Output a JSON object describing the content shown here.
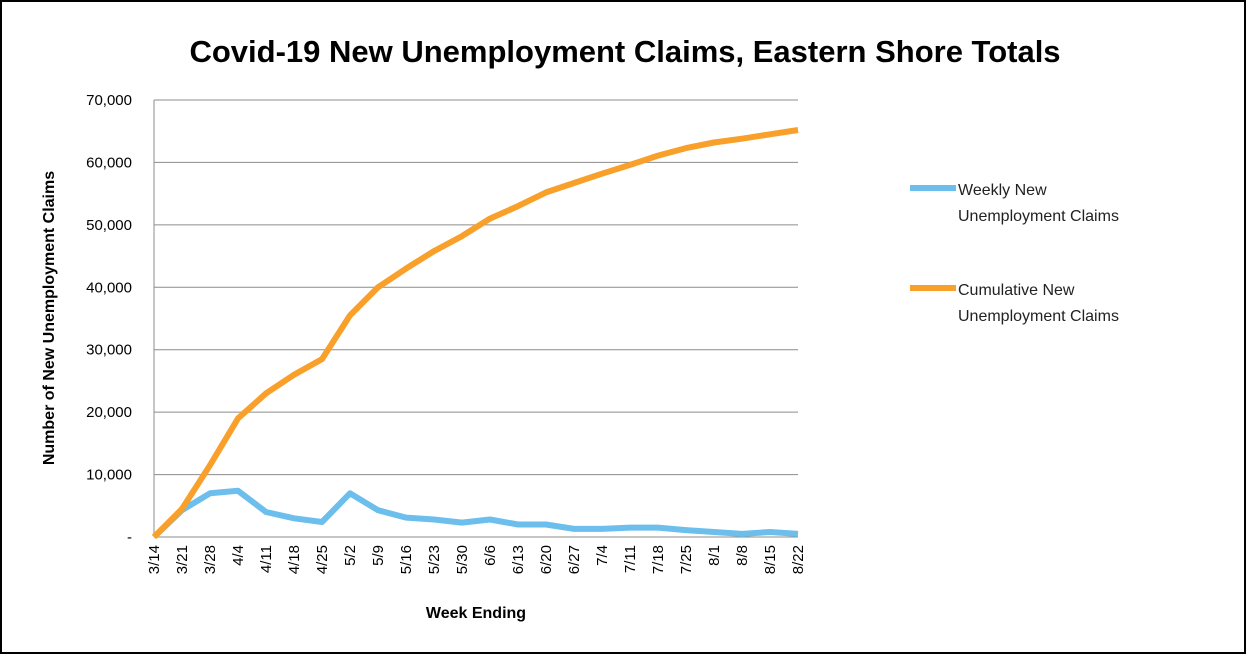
{
  "chart_data": {
    "type": "line",
    "title": "Covid-19 New Unemployment Claims, Eastern Shore Totals",
    "xlabel": "Week Ending",
    "ylabel": "Number of New Unemployment Claims",
    "ylim": [
      0,
      70000
    ],
    "yticks": [
      0,
      10000,
      20000,
      30000,
      40000,
      50000,
      60000,
      70000
    ],
    "ytick_labels": [
      "-",
      "10,000",
      "20,000",
      "30,000",
      "40,000",
      "50,000",
      "60,000",
      "70,000"
    ],
    "grid": true,
    "legend_position": "right",
    "categories": [
      "3/14",
      "3/21",
      "3/28",
      "4/4",
      "4/11",
      "4/18",
      "4/25",
      "5/2",
      "5/9",
      "5/16",
      "5/23",
      "5/30",
      "6/6",
      "6/13",
      "6/20",
      "6/27",
      "7/4",
      "7/11",
      "7/18",
      "7/25",
      "8/1",
      "8/8",
      "8/15",
      "8/22"
    ],
    "series": [
      {
        "name": "Weekly New Unemployment Claims",
        "color": "#6cbfec",
        "values": [
          0,
          4300,
          7000,
          7400,
          4000,
          3000,
          2400,
          7000,
          4300,
          3100,
          2800,
          2300,
          2800,
          2000,
          2000,
          1300,
          1300,
          1500,
          1500,
          1100,
          800,
          500,
          800,
          500
        ]
      },
      {
        "name": "Cumulative New Unemployment Claims",
        "color": "#f9a02a",
        "values": [
          0,
          4500,
          11500,
          19000,
          23000,
          26000,
          28500,
          35500,
          40000,
          43000,
          45800,
          48200,
          51000,
          53000,
          55200,
          56700,
          58200,
          59600,
          61100,
          62300,
          63200,
          63800,
          64500,
          65200
        ]
      }
    ]
  }
}
